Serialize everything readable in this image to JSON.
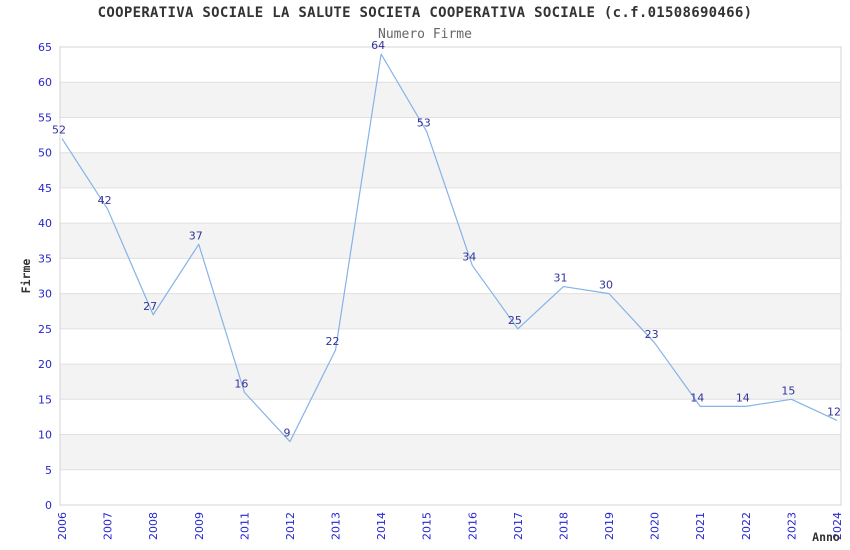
{
  "page": {
    "title": "COOPERATIVA SOCIALE LA SALUTE SOCIETA COOPERATIVA SOCIALE (c.f.01508690466)",
    "subtitle": "Numero Firme"
  },
  "chart_data": {
    "type": "line",
    "title": "COOPERATIVA SOCIALE LA SALUTE SOCIETA COOPERATIVA SOCIALE (c.f.01508690466)",
    "subtitle": "Numero Firme",
    "xlabel": "Anno",
    "ylabel": "Firme",
    "categories": [
      "2006",
      "2007",
      "2008",
      "2009",
      "2011",
      "2012",
      "2013",
      "2014",
      "2015",
      "2016",
      "2017",
      "2018",
      "2019",
      "2020",
      "2021",
      "2022",
      "2023",
      "2024"
    ],
    "values": [
      52,
      42,
      27,
      37,
      16,
      9,
      22,
      64,
      53,
      34,
      25,
      31,
      30,
      23,
      14,
      14,
      15,
      12
    ],
    "ylim": [
      0,
      65
    ],
    "ytick_step": 5,
    "x_tick_rotation": -90,
    "show_point_labels": true,
    "grid": "horizontal",
    "alternating_bands": true,
    "legend_position": "none",
    "colors": {
      "line": "#85b3e8",
      "point_label": "#333399",
      "tick_label": "#2626d0",
      "band": "#f3f3f3",
      "grid": "#e0e0e0",
      "plot_border": "#d4d4d4",
      "title": "#333333",
      "subtitle": "#666666",
      "axis_label": "#333333",
      "background": "#ffffff"
    }
  }
}
